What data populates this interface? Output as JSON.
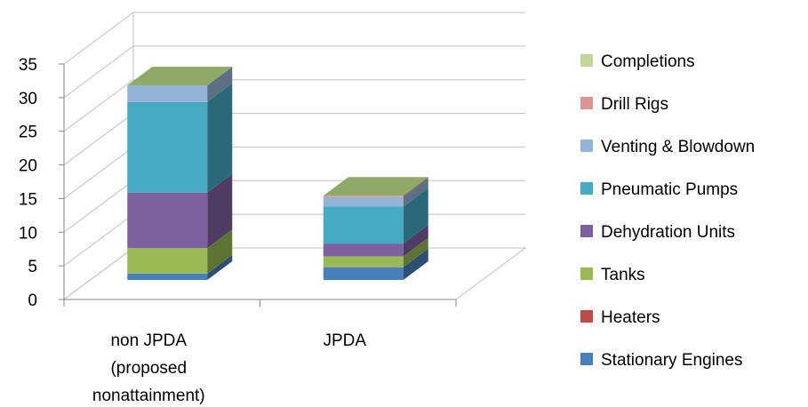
{
  "chart_data": {
    "type": "bar",
    "stacked": true,
    "three_d": true,
    "categories": [
      [
        "non JPDA",
        "(proposed",
        "nonattainment)"
      ],
      [
        "JPDA"
      ]
    ],
    "ylim": [
      0,
      35
    ],
    "yticks": [
      "0",
      "5",
      "10",
      "15",
      "20",
      "25",
      "30",
      "35"
    ],
    "grid": true,
    "legend_position": "right",
    "series": [
      {
        "name": "Stationary Engines",
        "values": [
          1.0,
          2.0
        ],
        "color": "#4a7ebb"
      },
      {
        "name": "Heaters",
        "values": [
          0.0,
          0.0
        ],
        "color": "#be4b48"
      },
      {
        "name": "Tanks",
        "values": [
          4.0,
          1.7
        ],
        "color": "#98b954"
      },
      {
        "name": "Dehydration Units",
        "values": [
          8.7,
          2.0
        ],
        "color": "#7d60a0"
      },
      {
        "name": "Pneumatic Pumps",
        "values": [
          14.2,
          5.8
        ],
        "color": "#46aac5"
      },
      {
        "name": "Venting & Blowdown",
        "values": [
          2.6,
          1.5
        ],
        "color": "#95b3d7"
      },
      {
        "name": "Drill Rigs",
        "values": [
          0.0,
          0.2
        ],
        "color": "#d99694"
      },
      {
        "name": "Completions",
        "values": [
          0.0,
          0.0
        ],
        "color": "#c3d69b"
      }
    ]
  }
}
